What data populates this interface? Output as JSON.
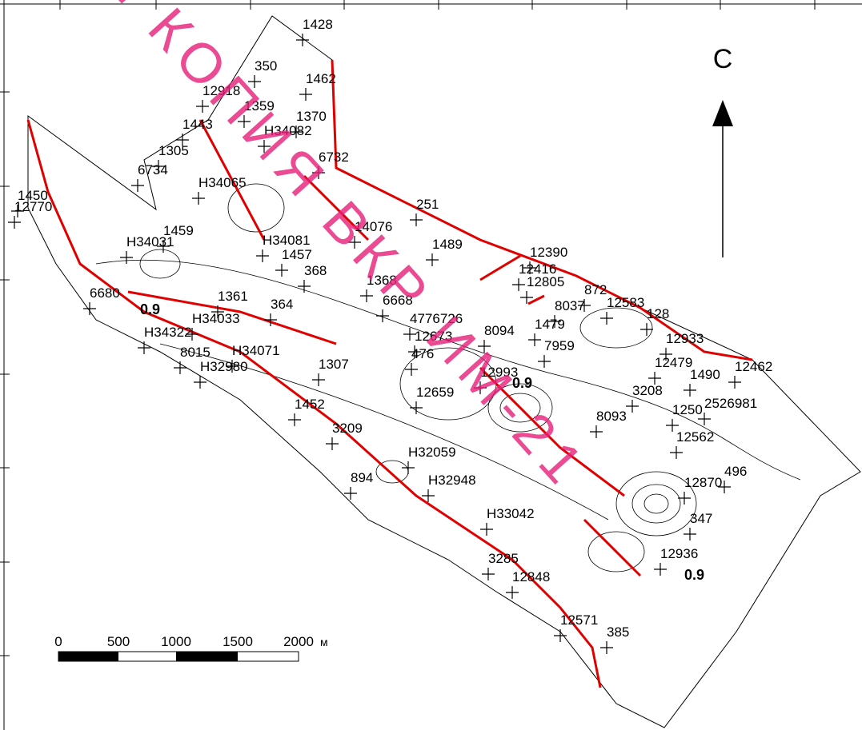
{
  "north": "С",
  "scale_bar": {
    "labels": [
      "0",
      "500",
      "1000",
      "1500",
      "2000"
    ],
    "unit": "м"
  },
  "contour_labels": [
    "0.9",
    "0.9",
    "0.9"
  ],
  "watermark": "я КОПИЯ ВКР ИМ-21",
  "wells": [
    "1428",
    "350",
    "1462",
    "12918",
    "1359",
    "1370",
    "H34082",
    "1443",
    "1305",
    "6734",
    "6732",
    "H34065",
    "1450",
    "12770",
    "251",
    "14076",
    "1459",
    "H34031",
    "H34081",
    "1489",
    "12390",
    "12416",
    "12805",
    "872",
    "8037",
    "12583",
    "128",
    "1479",
    "12933",
    "7959",
    "8094",
    "12673",
    "476",
    "1368",
    "6668",
    "4776726",
    "1307",
    "H34033",
    "H34071",
    "H32980",
    "12479",
    "12462",
    "1490",
    "3208",
    "12993",
    "12659",
    "1250",
    "2526981",
    "1452",
    "3209",
    "8093",
    "12562",
    "H32059",
    "894",
    "496",
    "12870",
    "347",
    "12936",
    "H32948",
    "3285",
    "12848",
    "12571",
    "385",
    "H33042",
    "6680",
    "H34322",
    "8015",
    "1361",
    "364",
    "368",
    "1457"
  ]
}
